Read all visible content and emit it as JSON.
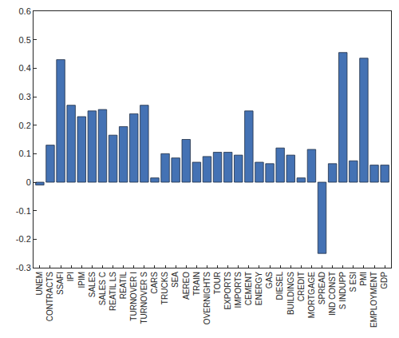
{
  "chart_data": {
    "type": "bar",
    "categories": [
      "UNEM",
      "CONTRACTS",
      "SSAFI",
      "IPI",
      "IPIM",
      "SALES",
      "SALES C",
      "REATIL LS",
      "REATIL",
      "TURNOVER I",
      "TURNOVER S",
      "CARS",
      "TRUCKS",
      "SEA",
      "AEREO",
      "TRAIN",
      "OVERNIGHTS",
      "TOUR",
      "EXPORTS",
      "IMPORTS",
      "CEMENT",
      "ENERGY",
      "GAS",
      "DIESEL",
      "BUILDINGS",
      "CREDIT",
      "MORTGAGE",
      "SPREAD",
      "IND CONST",
      "S INDUPP",
      "S ESI",
      "PMI",
      "EMPLOYMENT",
      "GDP"
    ],
    "values": [
      -0.01,
      0.13,
      0.43,
      0.27,
      0.23,
      0.25,
      0.255,
      0.165,
      0.195,
      0.24,
      0.27,
      0.015,
      0.1,
      0.085,
      0.15,
      0.07,
      0.09,
      0.105,
      0.105,
      0.095,
      0.25,
      0.07,
      0.065,
      0.12,
      0.095,
      0.015,
      0.115,
      -0.25,
      0.065,
      0.455,
      0.075,
      0.435,
      0.06,
      0.06
    ],
    "color": "#4472b4",
    "ylim": [
      -0.3,
      0.6
    ],
    "yticks": [
      -0.3,
      -0.2,
      -0.1,
      0,
      0.1,
      0.2,
      0.3,
      0.4,
      0.5,
      0.6
    ],
    "grid": false
  }
}
